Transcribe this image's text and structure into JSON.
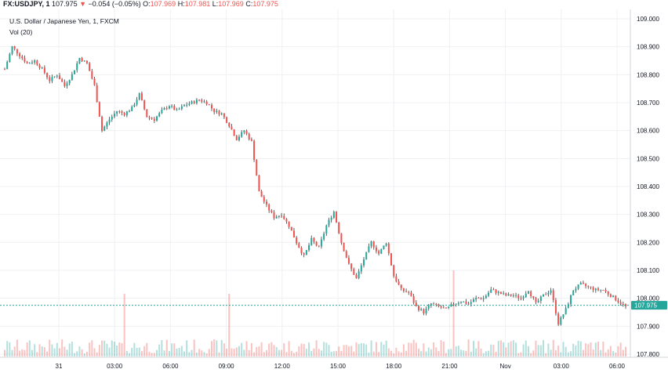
{
  "header": {
    "symbol": "FX:USDJPY, 1",
    "last": "107.975",
    "arrow": "▼",
    "change": "−0.054 (−0.05%)",
    "o_label": "O:",
    "o_val": "107.969",
    "h_label": "H:",
    "h_val": "107.981",
    "l_label": "L:",
    "l_val": "107.969",
    "c_label": "C:",
    "c_val": "107.975"
  },
  "legend": {
    "title": "U.S. Dollar / Japanese Yen, 1, FXCM",
    "volume": "Vol (20)"
  },
  "colors": {
    "up": "#26a69a",
    "down": "#ef5350",
    "candle": "#3a3a3a",
    "price_line": "#26a69a",
    "grid": "#eef0f3"
  },
  "chart_data": {
    "type": "line",
    "ylim": [
      107.8,
      109.0
    ],
    "y_ticks": [
      "109.000",
      "108.900",
      "108.800",
      "108.700",
      "108.600",
      "108.500",
      "108.400",
      "108.300",
      "108.200",
      "108.100",
      "108.000",
      "107.900",
      "107.800"
    ],
    "x_tick_labels": [
      "31",
      "03:00",
      "06:00",
      "09:00",
      "12:00",
      "15:00",
      "18:00",
      "21:00",
      "Nov",
      "03:00",
      "06:00"
    ],
    "current_price": "107.975",
    "series": [
      {
        "values": [
          108.82,
          108.9,
          108.87,
          108.84,
          108.85,
          108.82,
          108.78,
          108.8,
          108.76,
          108.8,
          108.86,
          108.84,
          108.76,
          108.6,
          108.64,
          108.67,
          108.66,
          108.68,
          108.73,
          108.65,
          108.64,
          108.67,
          108.69,
          108.67,
          108.69,
          108.7,
          108.71,
          108.7,
          108.67,
          108.66,
          108.62,
          108.57,
          108.6,
          108.56,
          108.38,
          108.33,
          108.29,
          108.3,
          108.26,
          108.2,
          108.15,
          108.21,
          108.18,
          108.26,
          108.31,
          108.2,
          108.12,
          108.07,
          108.14,
          108.2,
          108.16,
          108.2,
          108.08,
          108.03,
          108.02,
          107.97,
          107.95,
          107.98,
          107.97,
          107.96,
          107.98,
          107.99,
          107.98,
          108.0,
          108.0,
          108.03,
          108.02,
          108.01,
          108.01,
          108.0,
          108.03,
          107.98,
          108.01,
          108.03,
          107.91,
          107.96,
          108.03,
          108.05,
          108.04,
          108.03,
          108.03,
          108.01,
          107.99,
          107.97
        ]
      }
    ]
  }
}
